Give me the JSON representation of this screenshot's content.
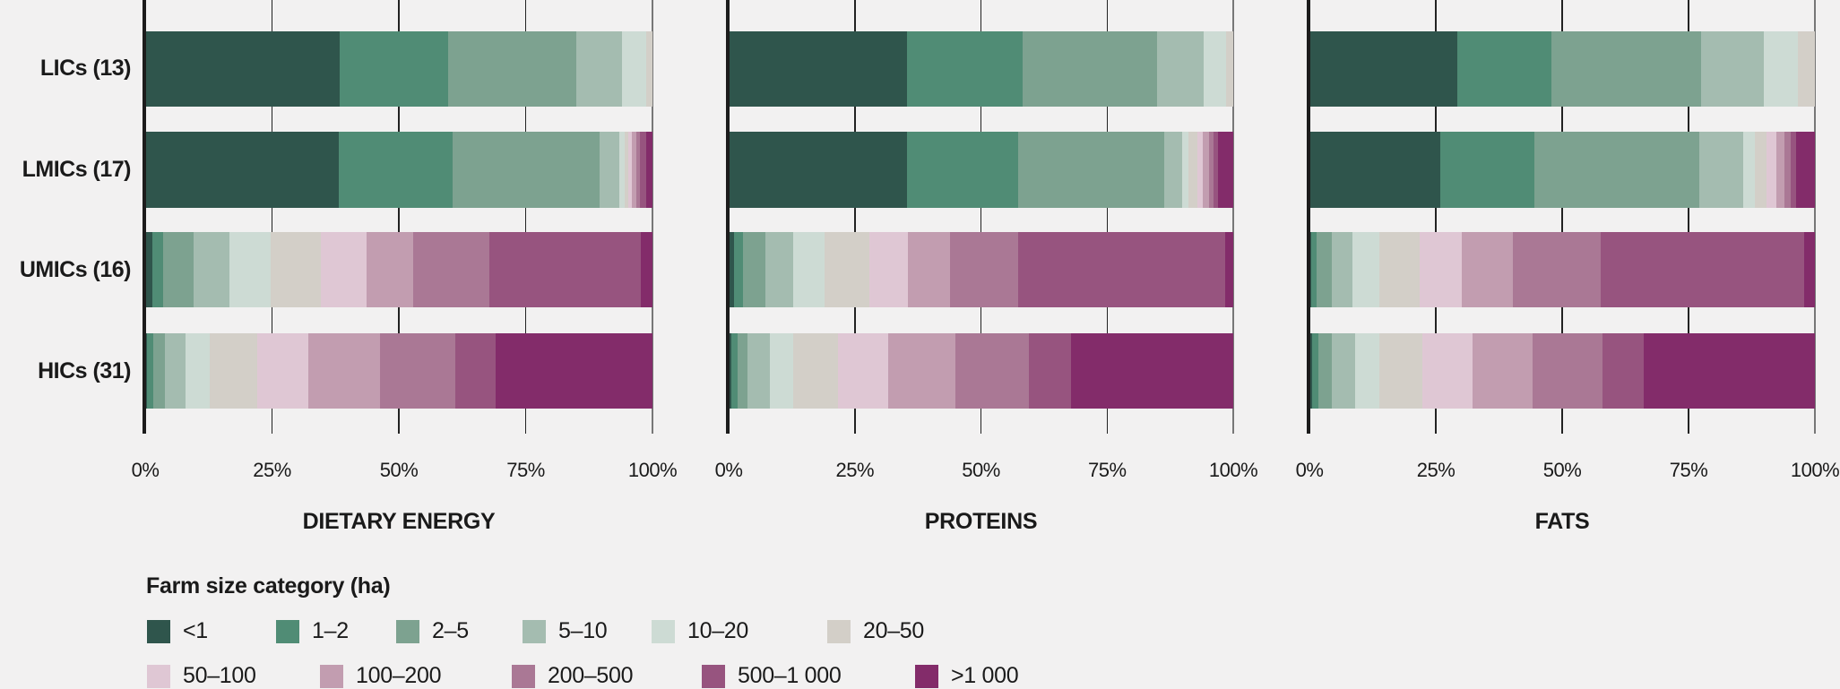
{
  "chart_data": [
    {
      "type": "bar",
      "orientation": "horizontal",
      "stacked": "100%",
      "title": "DIETARY ENERGY",
      "categories": [
        "LICs (13)",
        "LMICs (17)",
        "UMICs (16)",
        "HICs (31)"
      ],
      "xlim": [
        0,
        100
      ],
      "xticks": [
        "0%",
        "25%",
        "50%",
        "75%",
        "100%"
      ],
      "grid": true,
      "series": [
        {
          "name": "<1",
          "values": [
            38.4,
            38.1,
            1.4,
            0.4
          ]
        },
        {
          "name": "1–2",
          "values": [
            21.4,
            22.5,
            2.1,
            1.2
          ]
        },
        {
          "name": "2–5",
          "values": [
            25.1,
            28.9,
            6.1,
            2.2
          ]
        },
        {
          "name": "5–10",
          "values": [
            9.1,
            3.9,
            7.0,
            4.2
          ]
        },
        {
          "name": "10–20",
          "values": [
            4.7,
            1.2,
            8.2,
            4.7
          ]
        },
        {
          "name": "20–50",
          "values": [
            1.3,
            0.6,
            9.9,
            9.3
          ]
        },
        {
          "name": "50–100",
          "values": [
            0,
            0.8,
            9.0,
            10.2
          ]
        },
        {
          "name": "100–200",
          "values": [
            0,
            0.9,
            9.2,
            14.1
          ]
        },
        {
          "name": "200–500",
          "values": [
            0,
            0.7,
            14.9,
            14.8
          ]
        },
        {
          "name": "500–1 000",
          "values": [
            0,
            1.1,
            29.9,
            8.0
          ]
        },
        {
          "name": ">1 000",
          "values": [
            0,
            1.3,
            2.3,
            30.9
          ]
        }
      ]
    },
    {
      "type": "bar",
      "orientation": "horizontal",
      "stacked": "100%",
      "title": "PROTEINS",
      "categories": [
        "LICs (13)",
        "LMICs (17)",
        "UMICs (16)",
        "HICs (31)"
      ],
      "xlim": [
        0,
        100
      ],
      "xticks": [
        "0%",
        "25%",
        "50%",
        "75%",
        "100%"
      ],
      "grid": true,
      "series": [
        {
          "name": "<1",
          "values": [
            35.3,
            35.3,
            1.0,
            0.5
          ]
        },
        {
          "name": "1–2",
          "values": [
            22.9,
            22.0,
            1.8,
            1.2
          ]
        },
        {
          "name": "2–5",
          "values": [
            26.7,
            29.0,
            4.4,
            2.0
          ]
        },
        {
          "name": "5–10",
          "values": [
            9.3,
            3.6,
            5.5,
            4.4
          ]
        },
        {
          "name": "10–20",
          "values": [
            4.4,
            1.2,
            6.3,
            4.6
          ]
        },
        {
          "name": "20–50",
          "values": [
            1.4,
            1.8,
            8.9,
            8.9
          ]
        },
        {
          "name": "50–100",
          "values": [
            0,
            1.1,
            7.7,
            10.1
          ]
        },
        {
          "name": "100–200",
          "values": [
            0,
            1.2,
            8.2,
            13.3
          ]
        },
        {
          "name": "200–500",
          "values": [
            0,
            0.9,
            13.5,
            14.5
          ]
        },
        {
          "name": "500–1 000",
          "values": [
            0,
            0.8,
            41.1,
            8.4
          ]
        },
        {
          "name": ">1 000",
          "values": [
            0,
            3.1,
            1.6,
            32.1
          ]
        }
      ]
    },
    {
      "type": "bar",
      "orientation": "horizontal",
      "stacked": "100%",
      "title": "FATS",
      "categories": [
        "LICs (13)",
        "LMICs (17)",
        "UMICs (16)",
        "HICs (31)"
      ],
      "xlim": [
        0,
        100
      ],
      "xticks": [
        "0%",
        "25%",
        "50%",
        "75%",
        "100%"
      ],
      "grid": true,
      "series": [
        {
          "name": "<1",
          "values": [
            29.2,
            25.9,
            0.3,
            0.5
          ]
        },
        {
          "name": "1–2",
          "values": [
            18.7,
            18.6,
            1.1,
            1.2
          ]
        },
        {
          "name": "2–5",
          "values": [
            29.6,
            32.6,
            3.1,
            2.7
          ]
        },
        {
          "name": "5–10",
          "values": [
            12.4,
            8.7,
            4.0,
            4.7
          ]
        },
        {
          "name": "10–20",
          "values": [
            6.8,
            2.4,
            5.3,
            4.7
          ]
        },
        {
          "name": "20–50",
          "values": [
            3.3,
            2.2,
            8.0,
            8.6
          ]
        },
        {
          "name": "50–100",
          "values": [
            0,
            2.0,
            8.3,
            9.8
          ]
        },
        {
          "name": "100–200",
          "values": [
            0,
            1.5,
            10.1,
            11.9
          ]
        },
        {
          "name": "200–500",
          "values": [
            0,
            1.3,
            17.4,
            13.8
          ]
        },
        {
          "name": "500–1 000",
          "values": [
            0,
            1.0,
            40.2,
            8.2
          ]
        },
        {
          "name": ">1 000",
          "values": [
            0,
            3.8,
            2.2,
            33.9
          ]
        }
      ]
    }
  ],
  "legend": {
    "title": "Farm size category (ha)",
    "position": "bottom-left",
    "items": [
      {
        "label": "<1",
        "color": "#2f554c"
      },
      {
        "label": "1–2",
        "color": "#508c75"
      },
      {
        "label": "2–5",
        "color": "#7da290"
      },
      {
        "label": "5–10",
        "color": "#a4bcb0"
      },
      {
        "label": "10–20",
        "color": "#cddbd4"
      },
      {
        "label": "20–50",
        "color": "#d3cfc8"
      },
      {
        "label": "50–100",
        "color": "#dfc7d4"
      },
      {
        "label": "100–200",
        "color": "#c29db0"
      },
      {
        "label": "200–500",
        "color": "#aa7895"
      },
      {
        "label": "500–1 000",
        "color": "#97547f"
      },
      {
        "label": ">1 000",
        "color": "#832c6a"
      }
    ]
  },
  "row_labels": [
    "LICs (13)",
    "LMICs (17)",
    "UMICs (16)",
    "HICs (31)"
  ]
}
